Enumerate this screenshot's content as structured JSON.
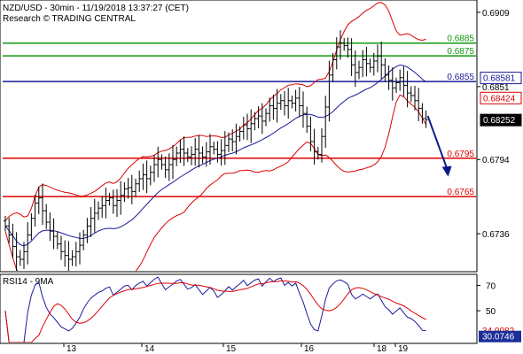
{
  "header": {
    "title": "NZD/USD - 30min - 11/19/2018 13:37:27 (CET)",
    "subtitle": "Research © TRADING CENTRAL"
  },
  "rsi": {
    "label": "RSI14 - 9MA"
  },
  "colors": {
    "green": "#119911",
    "blue": "#1a1a9a",
    "red": "#dd0000",
    "trend_arrow": "#0a1a8c",
    "current_label_bg": "#000000",
    "rsi_label_bg": "#1a2e99"
  },
  "chart_data": [
    {
      "type": "line",
      "title": "NZD/USD - 30min - 11/19/2018 13:37:27 (CET)",
      "x_tick_labels": [
        "13",
        "14",
        "15",
        "16",
        "18",
        "19"
      ],
      "ylim": [
        0.6707,
        0.6918
      ],
      "y_tick_labels": [
        "0.6909",
        "0.6851",
        "0.6794",
        "0.6736"
      ],
      "y_ticks": [
        0.6909,
        0.6851,
        0.6794,
        0.6736
      ],
      "levels": [
        {
          "value": 0.6885,
          "label": "0.6885",
          "color": "#119911"
        },
        {
          "value": 0.6875,
          "label": "0.6875",
          "color": "#119911"
        },
        {
          "value": 0.6855,
          "label": "0.6855",
          "color": "#1a1a9a"
        },
        {
          "value": 0.6795,
          "label": "0.6795",
          "color": "#dd0000"
        },
        {
          "value": 0.6765,
          "label": "0.6765",
          "color": "#dd0000"
        }
      ],
      "price_tags": [
        {
          "value": 0.68581,
          "label": "0.68581",
          "style": "blue-box"
        },
        {
          "value": 0.68424,
          "label": "0.68424",
          "style": "red-box"
        },
        {
          "value": 0.68252,
          "label": "0.68252",
          "style": "black-box"
        }
      ],
      "series": [
        {
          "type": "ohlc",
          "close": [
            0.6742,
            0.6735,
            0.6726,
            0.6718,
            0.6716,
            0.6722,
            0.6735,
            0.6748,
            0.676,
            0.6764,
            0.6754,
            0.6745,
            0.6738,
            0.6734,
            0.6728,
            0.6722,
            0.6719,
            0.6716,
            0.6718,
            0.6722,
            0.6727,
            0.6735,
            0.6742,
            0.6748,
            0.6752,
            0.6756,
            0.6758,
            0.6762,
            0.6764,
            0.6758,
            0.6762,
            0.6766,
            0.6771,
            0.6772,
            0.6769,
            0.6775,
            0.6779,
            0.6782,
            0.6779,
            0.6784,
            0.679,
            0.6794,
            0.679,
            0.6786,
            0.679,
            0.6794,
            0.6799,
            0.6802,
            0.6799,
            0.6796,
            0.6798,
            0.6802,
            0.6799,
            0.6796,
            0.68,
            0.6804,
            0.6802,
            0.6798,
            0.6801,
            0.6805,
            0.681,
            0.6808,
            0.6812,
            0.6816,
            0.6821,
            0.6818,
            0.6822,
            0.6826,
            0.6828,
            0.6824,
            0.683,
            0.6836,
            0.6834,
            0.6838,
            0.684,
            0.6836,
            0.684,
            0.6838,
            0.6842,
            0.6836,
            0.683,
            0.682,
            0.6808,
            0.68,
            0.6798,
            0.6812,
            0.6835,
            0.686,
            0.6872,
            0.6882,
            0.6885,
            0.6883,
            0.688,
            0.6868,
            0.6862,
            0.6866,
            0.6872,
            0.6869,
            0.6866,
            0.6871,
            0.6875,
            0.6868,
            0.686,
            0.6856,
            0.685,
            0.6854,
            0.6858,
            0.6852,
            0.6846,
            0.6844,
            0.684,
            0.6834,
            0.6826,
            0.6825
          ]
        },
        {
          "name": "",
          "type": "moving-average",
          "color": "#1a1a9a"
        },
        {
          "name": "",
          "type": "bollinger-bands",
          "color": "#dd0000"
        }
      ],
      "trend_arrow": {
        "from": 0.6828,
        "to": 0.6782
      }
    },
    {
      "type": "line",
      "title": "RSI14 - 9MA",
      "ylim": [
        25,
        78
      ],
      "y_tick_labels": [
        "70",
        "50"
      ],
      "y_ticks": [
        70,
        50
      ],
      "tags": [
        {
          "value": 34.9082,
          "label": "34.9082",
          "style": "red-text"
        },
        {
          "value": 30.0746,
          "label": "30.0746",
          "style": "blue-box"
        }
      ],
      "series": [
        {
          "name": "",
          "type": "rsi",
          "color": "#1a1a9a"
        },
        {
          "name": "",
          "type": "rsi-ma",
          "color": "#dd0000"
        }
      ]
    }
  ]
}
